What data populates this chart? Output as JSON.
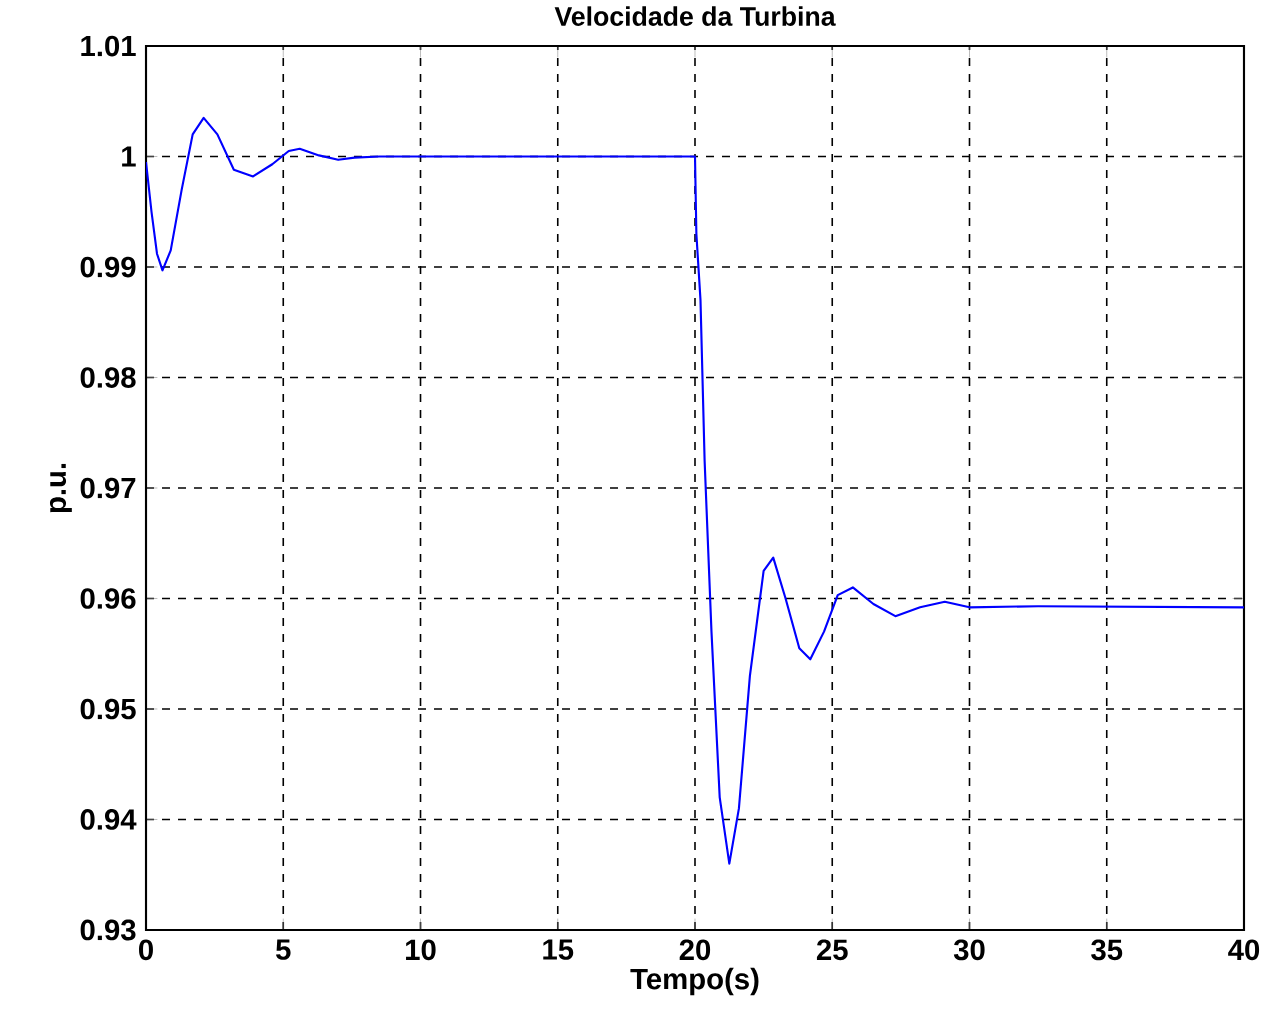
{
  "chart_data": {
    "type": "line",
    "title": "Velocidade da Turbina",
    "xlabel": "Tempo(s)",
    "ylabel": "p.u.",
    "x": [
      0,
      0.2,
      0.4,
      0.6,
      0.9,
      1.3,
      1.7,
      2.1,
      2.6,
      3.2,
      3.9,
      4.6,
      5.2,
      5.6,
      6.3,
      7.0,
      7.6,
      8.5,
      20,
      20.05,
      20.2,
      20.35,
      20.6,
      20.9,
      21.25,
      21.6,
      22.0,
      22.5,
      22.85,
      23.3,
      23.8,
      24.2,
      24.7,
      25.2,
      25.75,
      26.5,
      27.3,
      28.2,
      29.1,
      30,
      32.5,
      40
    ],
    "series": [
      {
        "color": "#0000ff",
        "values": [
          0.9995,
          0.995,
          0.9912,
          0.9897,
          0.9915,
          0.997,
          1.002,
          1.0035,
          1.002,
          0.9988,
          0.9982,
          0.9993,
          1.0005,
          1.0007,
          1.0001,
          0.9997,
          0.9999,
          1.0,
          1.0,
          0.993,
          0.987,
          0.9725,
          0.957,
          0.942,
          0.936,
          0.941,
          0.953,
          0.9625,
          0.9637,
          0.96,
          0.9555,
          0.9545,
          0.957,
          0.9603,
          0.961,
          0.9595,
          0.9584,
          0.9592,
          0.9597,
          0.9592,
          0.9593,
          0.9592
        ]
      }
    ],
    "xlim": [
      0,
      40
    ],
    "ylim": [
      0.93,
      1.01
    ],
    "xticks": [
      0,
      5,
      10,
      15,
      20,
      25,
      30,
      35,
      40
    ],
    "yticks": [
      0.93,
      0.94,
      0.95,
      0.96,
      0.97,
      0.98,
      0.99,
      1,
      1.01
    ],
    "grid": true
  }
}
